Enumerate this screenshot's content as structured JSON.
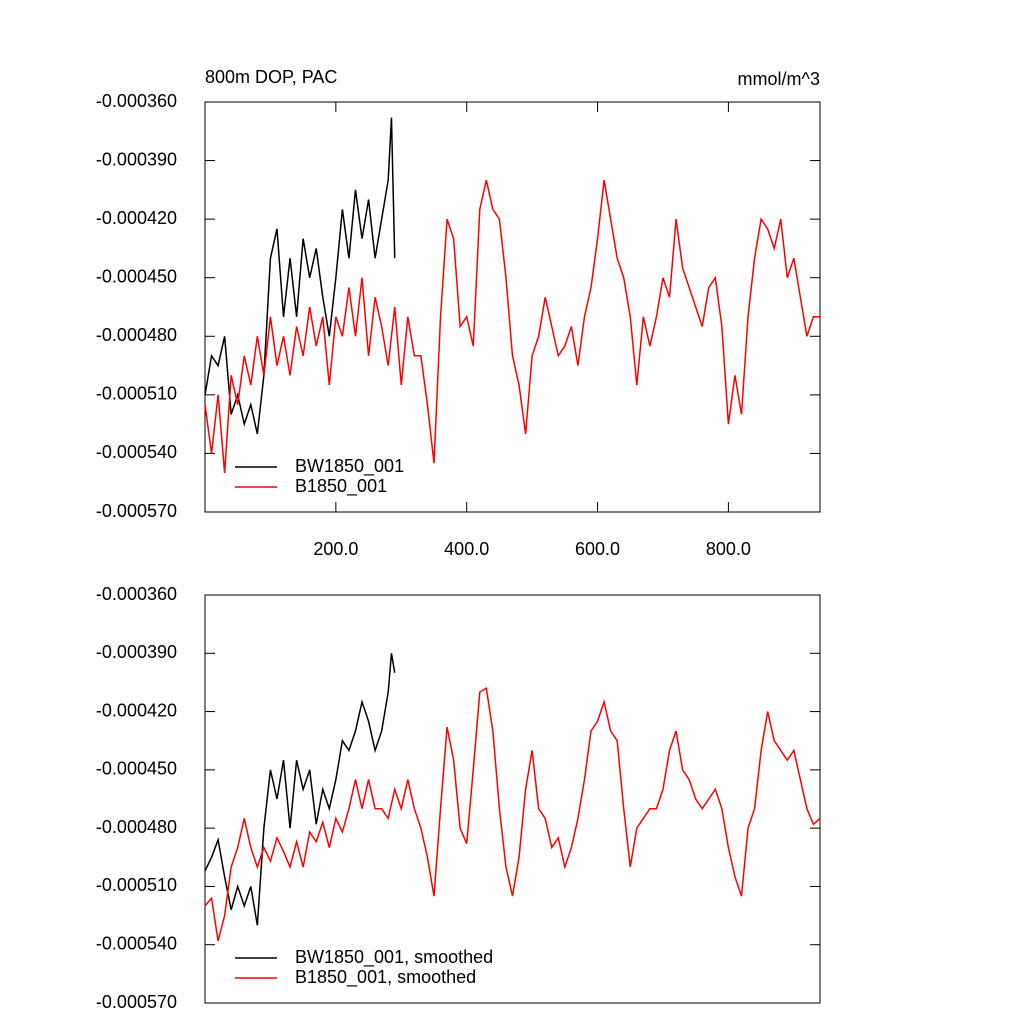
{
  "chart_data": [
    {
      "type": "line",
      "title": "800m DOP, PAC",
      "units": "mmol/m^3",
      "xlim": [
        0,
        940
      ],
      "ylim": [
        -0.00057,
        -0.00036
      ],
      "xticks": [
        {
          "value": 200,
          "label": "200.0"
        },
        {
          "value": 400,
          "label": "400.0"
        },
        {
          "value": 600,
          "label": "600.0"
        },
        {
          "value": 800,
          "label": "800.0"
        }
      ],
      "yticks": [
        {
          "value": -0.00036,
          "label": "-0.000360"
        },
        {
          "value": -0.00039,
          "label": "-0.000390"
        },
        {
          "value": -0.00042,
          "label": "-0.000420"
        },
        {
          "value": -0.00045,
          "label": "-0.000450"
        },
        {
          "value": -0.00048,
          "label": "-0.000480"
        },
        {
          "value": -0.00051,
          "label": "-0.000510"
        },
        {
          "value": -0.00054,
          "label": "-0.000540"
        },
        {
          "value": -0.00057,
          "label": "-0.000570"
        }
      ],
      "legend": "bottom-left",
      "series": [
        {
          "name": "BW1850_001",
          "color": "#000000",
          "x": [
            0,
            10,
            20,
            30,
            40,
            50,
            60,
            70,
            80,
            90,
            100,
            110,
            120,
            130,
            140,
            150,
            160,
            170,
            180,
            190,
            200,
            210,
            220,
            230,
            240,
            250,
            260,
            270,
            280,
            285,
            290
          ],
          "values": [
            -0.00051,
            -0.00049,
            -0.000495,
            -0.00048,
            -0.00052,
            -0.00051,
            -0.000525,
            -0.000515,
            -0.00053,
            -0.0005,
            -0.00044,
            -0.000425,
            -0.00047,
            -0.00044,
            -0.00047,
            -0.00043,
            -0.00045,
            -0.000435,
            -0.00046,
            -0.00048,
            -0.00045,
            -0.000415,
            -0.00044,
            -0.000405,
            -0.00043,
            -0.00041,
            -0.00044,
            -0.00042,
            -0.0004,
            -0.000368,
            -0.00044
          ]
        },
        {
          "name": "B1850_001",
          "color": "#ff0000",
          "x": [
            0,
            10,
            20,
            30,
            40,
            50,
            60,
            70,
            80,
            90,
            100,
            110,
            120,
            130,
            140,
            150,
            160,
            170,
            180,
            190,
            200,
            210,
            220,
            230,
            240,
            250,
            260,
            270,
            280,
            290,
            300,
            310,
            320,
            330,
            340,
            350,
            360,
            370,
            380,
            390,
            400,
            410,
            420,
            430,
            440,
            450,
            460,
            470,
            480,
            490,
            500,
            510,
            520,
            530,
            540,
            550,
            560,
            570,
            580,
            590,
            600,
            610,
            620,
            630,
            640,
            650,
            660,
            670,
            680,
            690,
            700,
            710,
            720,
            730,
            740,
            750,
            760,
            770,
            780,
            790,
            800,
            810,
            820,
            830,
            840,
            850,
            860,
            870,
            880,
            890,
            900,
            910,
            920,
            930,
            940
          ],
          "values": [
            -0.000515,
            -0.00054,
            -0.00051,
            -0.00055,
            -0.0005,
            -0.000515,
            -0.00049,
            -0.000505,
            -0.00048,
            -0.0005,
            -0.00047,
            -0.000495,
            -0.00048,
            -0.0005,
            -0.000475,
            -0.00049,
            -0.000465,
            -0.000485,
            -0.00047,
            -0.000505,
            -0.00047,
            -0.00048,
            -0.000455,
            -0.00048,
            -0.00045,
            -0.00049,
            -0.00046,
            -0.000475,
            -0.000495,
            -0.000465,
            -0.000505,
            -0.00047,
            -0.00049,
            -0.00049,
            -0.000515,
            -0.000545,
            -0.00047,
            -0.00042,
            -0.00043,
            -0.000475,
            -0.00047,
            -0.000485,
            -0.000415,
            -0.0004,
            -0.000415,
            -0.00042,
            -0.00045,
            -0.00049,
            -0.000505,
            -0.00053,
            -0.00049,
            -0.00048,
            -0.00046,
            -0.000475,
            -0.00049,
            -0.000485,
            -0.000475,
            -0.000495,
            -0.00047,
            -0.000455,
            -0.00043,
            -0.0004,
            -0.00042,
            -0.00044,
            -0.00045,
            -0.00047,
            -0.000505,
            -0.00047,
            -0.000485,
            -0.00047,
            -0.00045,
            -0.00046,
            -0.00042,
            -0.000445,
            -0.000455,
            -0.000465,
            -0.000475,
            -0.000455,
            -0.00045,
            -0.000475,
            -0.000525,
            -0.0005,
            -0.00052,
            -0.00047,
            -0.00044,
            -0.00042,
            -0.000425,
            -0.000435,
            -0.00042,
            -0.00045,
            -0.00044,
            -0.00046,
            -0.00048,
            -0.00047,
            -0.00047
          ]
        }
      ]
    },
    {
      "type": "line",
      "xlim": [
        0,
        940
      ],
      "ylim": [
        -0.00057,
        -0.00036
      ],
      "yticks": [
        {
          "value": -0.00036,
          "label": "-0.000360"
        },
        {
          "value": -0.00039,
          "label": "-0.000390"
        },
        {
          "value": -0.00042,
          "label": "-0.000420"
        },
        {
          "value": -0.00045,
          "label": "-0.000450"
        },
        {
          "value": -0.00048,
          "label": "-0.000480"
        },
        {
          "value": -0.00051,
          "label": "-0.000510"
        },
        {
          "value": -0.00054,
          "label": "-0.000540"
        },
        {
          "value": -0.00057,
          "label": "-0.000570"
        }
      ],
      "legend": "bottom-left",
      "series": [
        {
          "name": "BW1850_001, smoothed",
          "color": "#000000",
          "x": [
            0,
            10,
            20,
            30,
            40,
            50,
            60,
            70,
            80,
            90,
            100,
            110,
            120,
            130,
            140,
            150,
            160,
            170,
            180,
            190,
            200,
            210,
            220,
            230,
            240,
            250,
            260,
            270,
            280,
            285,
            290
          ],
          "values": [
            -0.000502,
            -0.000495,
            -0.000486,
            -0.000505,
            -0.000522,
            -0.00051,
            -0.00052,
            -0.00051,
            -0.00053,
            -0.00048,
            -0.00045,
            -0.000465,
            -0.000445,
            -0.00048,
            -0.000445,
            -0.00046,
            -0.00045,
            -0.000478,
            -0.00046,
            -0.00047,
            -0.000455,
            -0.000435,
            -0.00044,
            -0.00043,
            -0.000415,
            -0.000425,
            -0.00044,
            -0.00043,
            -0.00041,
            -0.00039,
            -0.0004
          ]
        },
        {
          "name": "B1850_001, smoothed",
          "color": "#ff0000",
          "x": [
            0,
            10,
            20,
            30,
            40,
            50,
            60,
            70,
            80,
            90,
            100,
            110,
            120,
            130,
            140,
            150,
            160,
            170,
            180,
            190,
            200,
            210,
            220,
            230,
            240,
            250,
            260,
            270,
            280,
            290,
            300,
            310,
            320,
            330,
            340,
            350,
            360,
            370,
            380,
            390,
            400,
            410,
            420,
            430,
            440,
            450,
            460,
            470,
            480,
            490,
            500,
            510,
            520,
            530,
            540,
            550,
            560,
            570,
            580,
            590,
            600,
            610,
            620,
            630,
            640,
            650,
            660,
            670,
            680,
            690,
            700,
            710,
            720,
            730,
            740,
            750,
            760,
            770,
            780,
            790,
            800,
            810,
            820,
            830,
            840,
            850,
            860,
            870,
            880,
            890,
            900,
            910,
            920,
            930,
            940
          ],
          "values": [
            -0.00052,
            -0.000516,
            -0.000538,
            -0.000525,
            -0.0005,
            -0.00049,
            -0.000475,
            -0.00049,
            -0.0005,
            -0.00049,
            -0.000497,
            -0.000485,
            -0.000492,
            -0.0005,
            -0.000487,
            -0.0005,
            -0.000482,
            -0.000487,
            -0.000477,
            -0.00049,
            -0.000475,
            -0.000482,
            -0.00047,
            -0.000455,
            -0.00047,
            -0.000455,
            -0.00047,
            -0.00047,
            -0.000475,
            -0.00046,
            -0.00047,
            -0.000455,
            -0.00047,
            -0.00048,
            -0.000495,
            -0.000515,
            -0.00047,
            -0.000428,
            -0.000445,
            -0.00048,
            -0.000488,
            -0.00045,
            -0.00041,
            -0.000408,
            -0.00043,
            -0.00047,
            -0.0005,
            -0.000515,
            -0.000495,
            -0.00046,
            -0.00044,
            -0.00047,
            -0.000475,
            -0.00049,
            -0.000485,
            -0.0005,
            -0.00049,
            -0.000475,
            -0.000455,
            -0.00043,
            -0.000425,
            -0.000415,
            -0.00043,
            -0.000435,
            -0.00047,
            -0.0005,
            -0.00048,
            -0.000475,
            -0.00047,
            -0.00047,
            -0.00046,
            -0.00044,
            -0.00043,
            -0.00045,
            -0.000455,
            -0.000465,
            -0.00047,
            -0.000465,
            -0.00046,
            -0.00047,
            -0.00049,
            -0.000505,
            -0.000515,
            -0.00048,
            -0.00047,
            -0.00044,
            -0.00042,
            -0.000435,
            -0.00044,
            -0.000445,
            -0.00044,
            -0.000455,
            -0.00047,
            -0.000478,
            -0.000475
          ]
        }
      ]
    }
  ]
}
